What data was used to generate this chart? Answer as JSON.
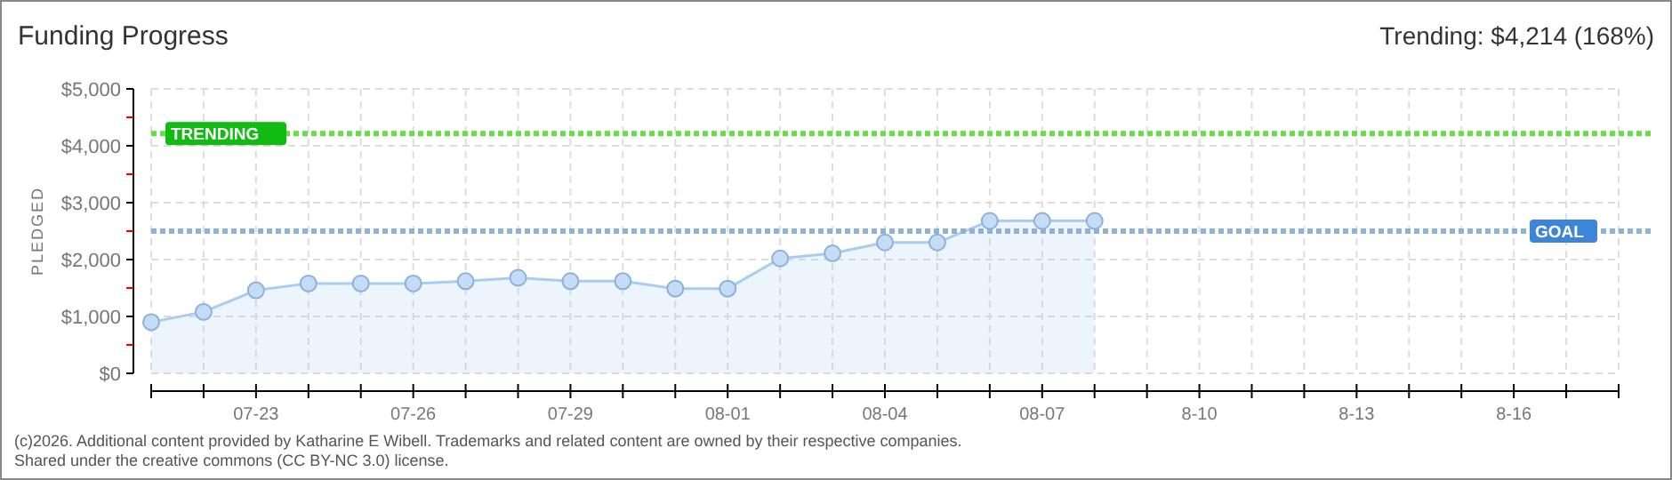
{
  "chart_data": {
    "type": "area",
    "title": "Funding Progress",
    "ylabel": "PLEDGED",
    "x": [
      "--07-21",
      "--07-22",
      "--07-23",
      "--07-24",
      "--07-25",
      "--07-26",
      "--07-27",
      "--07-28",
      "--07-29",
      "--07-30",
      "--07-31",
      "--08-01",
      "--08-02",
      "--08-03",
      "--08-04",
      "--08-05",
      "--08-06",
      "--08-07",
      "--08-08"
    ],
    "series": [
      {
        "color": "#a9cdf0",
        "values": [
          900,
          1080,
          1460,
          1580,
          1580,
          1580,
          1620,
          1680,
          1620,
          1620,
          1490,
          1490,
          2020,
          2110,
          2300,
          2300,
          2680,
          2680,
          2680
        ]
      }
    ],
    "marker": "circle",
    "grid": true,
    "xlim": [
      "--07-21",
      "--08-18"
    ],
    "xticks": [
      {
        "value": "--07-21",
        "label": null
      },
      {
        "value": "--07-22",
        "label": null
      },
      {
        "value": "--07-23",
        "label": "07-23"
      },
      {
        "value": "--07-24",
        "label": null
      },
      {
        "value": "--07-25",
        "label": null
      },
      {
        "value": "--07-26",
        "label": "07-26"
      },
      {
        "value": "--07-27",
        "label": null
      },
      {
        "value": "--07-28",
        "label": null
      },
      {
        "value": "--07-29",
        "label": "07-29"
      },
      {
        "value": "--07-30",
        "label": null
      },
      {
        "value": "--07-31",
        "label": null
      },
      {
        "value": "--08-01",
        "label": "08-01"
      },
      {
        "value": "--08-02",
        "label": null
      },
      {
        "value": "--08-03",
        "label": null
      },
      {
        "value": "--08-04",
        "label": "08-04"
      },
      {
        "value": "--08-05",
        "label": null
      },
      {
        "value": "--08-06",
        "label": null
      },
      {
        "value": "--08-07",
        "label": "08-07"
      },
      {
        "value": "--08-08",
        "label": null
      },
      {
        "value": "--08-09",
        "label": null
      },
      {
        "value": "--08-10",
        "label": "8-10"
      },
      {
        "value": "--08-11",
        "label": null
      },
      {
        "value": "--08-12",
        "label": null
      },
      {
        "value": "--08-13",
        "label": "8-13"
      },
      {
        "value": "--08-14",
        "label": null
      },
      {
        "value": "--08-15",
        "label": null
      },
      {
        "value": "--08-16",
        "label": "8-16"
      },
      {
        "value": "--08-17",
        "label": null
      },
      {
        "value": "--08-18",
        "label": null
      }
    ],
    "ylim": [
      0,
      5000
    ],
    "yticks": [
      {
        "value": 0,
        "label": "$0"
      },
      {
        "value": 500,
        "label": null
      },
      {
        "value": 1000,
        "label": "$1,000"
      },
      {
        "value": 1500,
        "label": null
      },
      {
        "value": 2000,
        "label": "$2,000"
      },
      {
        "value": 2500,
        "label": null
      },
      {
        "value": 3000,
        "label": "$3,000"
      },
      {
        "value": 3500,
        "label": null
      },
      {
        "value": 4000,
        "label": "$4,000"
      },
      {
        "value": 4500,
        "label": null
      },
      {
        "value": 5000,
        "label": "$5,000"
      }
    ],
    "ref_lines": [
      {
        "axis": "y",
        "value": 4214,
        "label": "TRENDING",
        "color": "#66dd44",
        "line_style": "dotted"
      },
      {
        "axis": "y",
        "value": 2500,
        "label": "GOAL",
        "color": "#8fb0d8",
        "line_style": "dotted"
      }
    ],
    "annotations": [
      "Trending: $4,214 (168%)",
      "(c)2026. Additional content provided by Katharine E Wibell. Trademarks and related content are owned by their respective companies.",
      "Shared under the creative commons (CC BY-NC 3.0) license."
    ]
  }
}
